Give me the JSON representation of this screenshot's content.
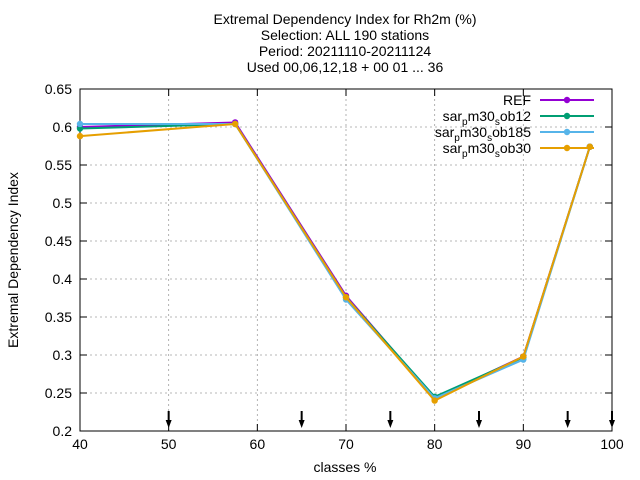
{
  "chart_data": {
    "type": "line",
    "title_lines": [
      "Extremal Dependency Index  for Rh2m (%)",
      "Selection: ALL    190 stations",
      "Period: 20211110-20211124",
      "Used 00,06,12,18 + 00 01 ... 36"
    ],
    "xlabel": "classes %",
    "ylabel": "Extremal Dependency Index",
    "xlim": [
      40,
      100
    ],
    "ylim": [
      0.2,
      0.65
    ],
    "xticks": [
      40,
      50,
      60,
      70,
      80,
      90,
      100
    ],
    "yticks": [
      0.2,
      0.25,
      0.3,
      0.35,
      0.4,
      0.45,
      0.5,
      0.55,
      0.6,
      0.65
    ],
    "grid": true,
    "legend_position": "top-right",
    "threshold_markers_x": [
      50,
      65,
      75,
      85,
      95,
      100
    ],
    "series": [
      {
        "name": "REF",
        "legend_parts": [
          [
            "REF",
            "n"
          ]
        ],
        "color": "#9400d3",
        "x": [
          40,
          57.5,
          70,
          80,
          90,
          97.5
        ],
        "y": [
          0.6,
          0.606,
          0.378,
          0.243,
          0.298,
          0.574
        ]
      },
      {
        "name": "sar_pm30_sob12",
        "legend_parts": [
          [
            "sar",
            "n"
          ],
          [
            "p",
            "sub"
          ],
          [
            "m30",
            "n"
          ],
          [
            "s",
            "sub"
          ],
          [
            "ob12",
            "n"
          ]
        ],
        "color": "#009e73",
        "x": [
          40,
          57.5,
          70,
          80,
          90,
          97.5
        ],
        "y": [
          0.598,
          0.604,
          0.376,
          0.245,
          0.297,
          0.574
        ]
      },
      {
        "name": "sar_pm30_sob185",
        "legend_parts": [
          [
            "sar",
            "n"
          ],
          [
            "p",
            "sub"
          ],
          [
            "m30",
            "n"
          ],
          [
            "s",
            "sub"
          ],
          [
            "ob185",
            "n"
          ]
        ],
        "color": "#56b4e9",
        "x": [
          40,
          57.5,
          70,
          80,
          90,
          97.5
        ],
        "y": [
          0.604,
          0.604,
          0.373,
          0.243,
          0.294,
          0.574
        ]
      },
      {
        "name": "sar_pm30_sob30",
        "legend_parts": [
          [
            "sar",
            "n"
          ],
          [
            "p",
            "sub"
          ],
          [
            "m30",
            "n"
          ],
          [
            "s",
            "sub"
          ],
          [
            "ob30",
            "n"
          ]
        ],
        "color": "#e69f00",
        "x": [
          40,
          57.5,
          70,
          80,
          90,
          97.5
        ],
        "y": [
          0.588,
          0.604,
          0.376,
          0.24,
          0.298,
          0.574
        ]
      }
    ]
  }
}
